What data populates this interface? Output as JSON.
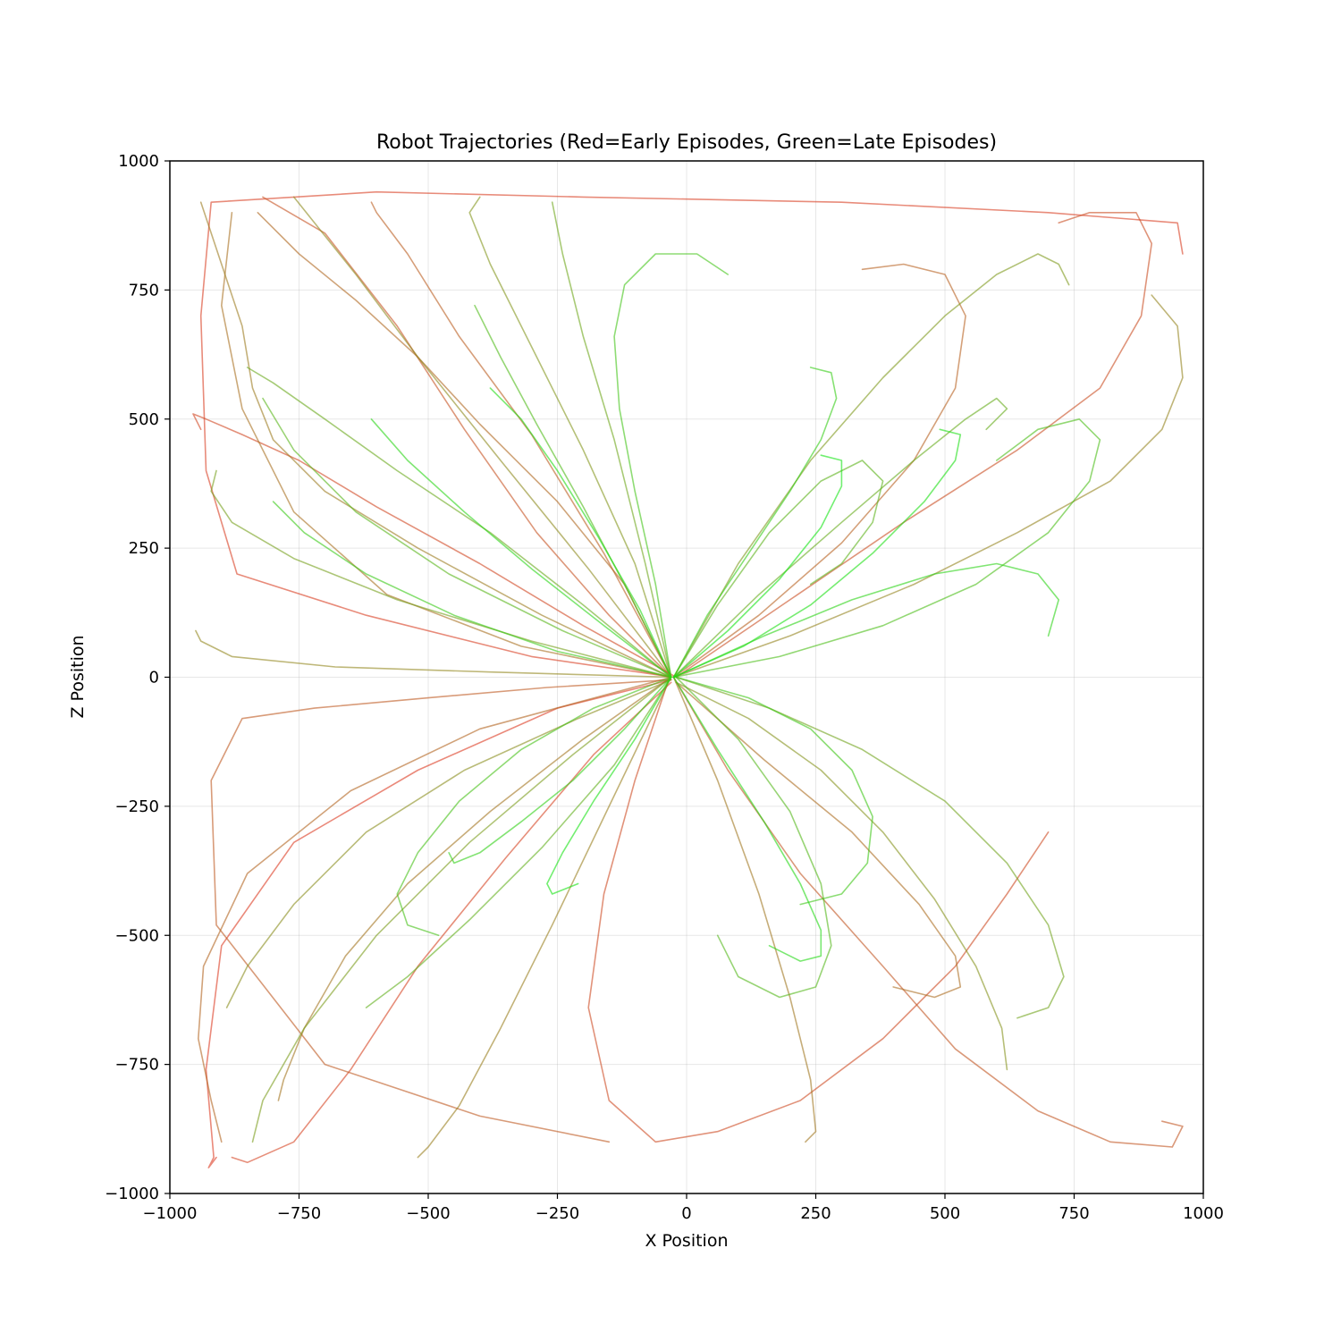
{
  "chart_data": {
    "type": "line",
    "title": "Robot Trajectories (Red=Early Episodes, Green=Late Episodes)",
    "xlabel": "X Position",
    "ylabel": "Z Position",
    "xlim": [
      -1000,
      1000
    ],
    "ylim": [
      -1000,
      1000
    ],
    "xticks": [
      -1000,
      -750,
      -500,
      -250,
      0,
      250,
      500,
      750,
      1000
    ],
    "yticks": [
      -1000,
      -750,
      -500,
      -250,
      0,
      250,
      500,
      750,
      1000
    ],
    "xtick_labels": [
      "−1000",
      "−750",
      "−500",
      "−250",
      "0",
      "250",
      "500",
      "750",
      "1000"
    ],
    "ytick_labels": [
      "−1000",
      "−750",
      "−500",
      "−250",
      "0",
      "250",
      "500",
      "750",
      "1000"
    ],
    "grid": true,
    "line_alpha": 0.6,
    "color_early": "#dc3a22",
    "color_mid": "#7f9a1d",
    "color_late": "#12e512",
    "series": [
      {
        "episode_fraction": 0.0,
        "x": [
          -30,
          -250,
          -520,
          -760,
          -900,
          -930,
          -915,
          -925,
          -910
        ],
        "y": [
          -5,
          -60,
          -180,
          -320,
          -520,
          -760,
          -930,
          -950,
          -930
        ]
      },
      {
        "episode_fraction": 0.02,
        "x": [
          -25,
          -300,
          -620,
          -870,
          -930,
          -940,
          -920,
          -600,
          -200,
          300,
          700,
          950,
          960
        ],
        "y": [
          0,
          40,
          120,
          200,
          400,
          700,
          920,
          940,
          930,
          920,
          900,
          880,
          820
        ]
      },
      {
        "episode_fraction": 0.04,
        "x": [
          -30,
          -180,
          -350,
          -520,
          -650,
          -760,
          -850,
          -880
        ],
        "y": [
          -10,
          -150,
          -350,
          -560,
          -760,
          -900,
          -940,
          -930
        ]
      },
      {
        "episode_fraction": 0.06,
        "x": [
          -20,
          -200,
          -400,
          -600,
          -750,
          -860,
          -930,
          -955,
          -940
        ],
        "y": [
          0,
          100,
          220,
          330,
          420,
          470,
          500,
          510,
          480
        ]
      },
      {
        "episode_fraction": 0.08,
        "x": [
          -35,
          -100,
          -160,
          -190,
          -150,
          -60,
          60,
          220,
          380,
          520,
          620,
          700
        ],
        "y": [
          -5,
          -200,
          -420,
          -640,
          -820,
          -900,
          -880,
          -820,
          -700,
          -560,
          -420,
          -300
        ]
      },
      {
        "episode_fraction": 0.1,
        "x": [
          -20,
          200,
          420,
          640,
          800,
          880,
          900,
          870,
          780,
          720
        ],
        "y": [
          0,
          150,
          300,
          440,
          560,
          700,
          840,
          900,
          900,
          880
        ]
      },
      {
        "episode_fraction": 0.12,
        "x": [
          -30,
          -150,
          -290,
          -430,
          -560,
          -700,
          -820
        ],
        "y": [
          0,
          120,
          280,
          480,
          680,
          860,
          930
        ]
      },
      {
        "episode_fraction": 0.14,
        "x": [
          -25,
          80,
          220,
          380,
          520,
          680,
          820,
          940,
          960,
          920
        ],
        "y": [
          0,
          -180,
          -380,
          -560,
          -720,
          -840,
          -900,
          -910,
          -870,
          -860
        ]
      },
      {
        "episode_fraction": 0.16,
        "x": [
          -30,
          -270,
          -500,
          -720,
          -860,
          -920,
          -910,
          -700,
          -400,
          -150
        ],
        "y": [
          -5,
          -20,
          -40,
          -60,
          -80,
          -200,
          -480,
          -750,
          -850,
          -900
        ]
      },
      {
        "episode_fraction": 0.18,
        "x": [
          -30,
          -160,
          -300,
          -440,
          -540,
          -600,
          -610
        ],
        "y": [
          0,
          240,
          470,
          660,
          820,
          900,
          920
        ]
      },
      {
        "episode_fraction": 0.2,
        "x": [
          -25,
          140,
          300,
          440,
          520,
          540,
          500,
          420,
          340
        ],
        "y": [
          0,
          120,
          260,
          420,
          560,
          700,
          780,
          800,
          790
        ]
      },
      {
        "episode_fraction": 0.22,
        "x": [
          -30,
          -400,
          -650,
          -850,
          -935,
          -945,
          -920,
          -900
        ],
        "y": [
          0,
          -100,
          -220,
          -380,
          -560,
          -700,
          -820,
          -900
        ]
      },
      {
        "episode_fraction": 0.24,
        "x": [
          -30,
          -120,
          -250,
          -400,
          -520,
          -640,
          -750,
          -830
        ],
        "y": [
          0,
          180,
          340,
          490,
          620,
          730,
          820,
          900
        ]
      },
      {
        "episode_fraction": 0.26,
        "x": [
          -20,
          150,
          320,
          450,
          520,
          530,
          480,
          400
        ],
        "y": [
          -10,
          -160,
          -300,
          -440,
          -540,
          -600,
          -620,
          -600
        ]
      },
      {
        "episode_fraction": 0.28,
        "x": [
          -30,
          -320,
          -580,
          -760,
          -860,
          -900,
          -880
        ],
        "y": [
          0,
          60,
          160,
          320,
          520,
          720,
          900
        ]
      },
      {
        "episode_fraction": 0.3,
        "x": [
          -30,
          -200,
          -380,
          -540,
          -660,
          -740,
          -780,
          -790
        ],
        "y": [
          0,
          -120,
          -260,
          -400,
          -540,
          -680,
          -780,
          -820
        ]
      },
      {
        "episode_fraction": 0.32,
        "x": [
          -25,
          60,
          140,
          200,
          240,
          250,
          230
        ],
        "y": [
          0,
          -200,
          -420,
          -620,
          -780,
          -880,
          -900
        ]
      },
      {
        "episode_fraction": 0.34,
        "x": [
          -30,
          -280,
          -520,
          -700,
          -800,
          -840,
          -860,
          -900,
          -940
        ],
        "y": [
          0,
          120,
          250,
          360,
          460,
          560,
          680,
          800,
          920
        ]
      },
      {
        "episode_fraction": 0.36,
        "x": [
          -30,
          -150,
          -260,
          -360,
          -440,
          -500,
          -520
        ],
        "y": [
          0,
          -250,
          -480,
          -680,
          -830,
          -910,
          -930
        ]
      },
      {
        "episode_fraction": 0.38,
        "x": [
          -25,
          200,
          440,
          640,
          820,
          920,
          960,
          950,
          900
        ],
        "y": [
          0,
          80,
          180,
          280,
          380,
          480,
          580,
          680,
          740
        ]
      },
      {
        "episode_fraction": 0.4,
        "x": [
          -30,
          -380,
          -680,
          -880,
          -940,
          -950
        ],
        "y": [
          0,
          10,
          20,
          40,
          70,
          90
        ]
      },
      {
        "episode_fraction": 0.42,
        "x": [
          -30,
          -190,
          -360,
          -520,
          -640,
          -720,
          -760
        ],
        "y": [
          0,
          210,
          420,
          620,
          780,
          880,
          930
        ]
      },
      {
        "episode_fraction": 0.44,
        "x": [
          -30,
          -210,
          -430,
          -620,
          -760,
          -850,
          -890
        ],
        "y": [
          -5,
          -80,
          -180,
          -300,
          -440,
          -560,
          -640
        ]
      },
      {
        "episode_fraction": 0.46,
        "x": [
          -20,
          120,
          260,
          380,
          480,
          560,
          610,
          620
        ],
        "y": [
          -10,
          -80,
          -180,
          -300,
          -430,
          -560,
          -680,
          -760
        ]
      },
      {
        "episode_fraction": 0.48,
        "x": [
          -30,
          -100,
          -200,
          -300,
          -380,
          -420,
          -400
        ],
        "y": [
          0,
          220,
          440,
          640,
          800,
          900,
          930
        ]
      },
      {
        "episode_fraction": 0.5,
        "x": [
          -25,
          100,
          240,
          380,
          500,
          600,
          680,
          720,
          740
        ],
        "y": [
          0,
          220,
          420,
          580,
          700,
          780,
          820,
          800,
          760
        ]
      },
      {
        "episode_fraction": 0.52,
        "x": [
          -30,
          -220,
          -420,
          -600,
          -740,
          -820,
          -840
        ],
        "y": [
          0,
          -150,
          -320,
          -500,
          -680,
          -820,
          -900
        ]
      },
      {
        "episode_fraction": 0.54,
        "x": [
          -30,
          -300,
          -560,
          -760,
          -880,
          -920,
          -910
        ],
        "y": [
          0,
          70,
          150,
          230,
          300,
          360,
          400
        ]
      },
      {
        "episode_fraction": 0.56,
        "x": [
          -20,
          160,
          340,
          500,
          620,
          700,
          730,
          700,
          640
        ],
        "y": [
          0,
          -60,
          -140,
          -240,
          -360,
          -480,
          -580,
          -640,
          -660
        ]
      },
      {
        "episode_fraction": 0.58,
        "x": [
          -30,
          -80,
          -140,
          -200,
          -240,
          -260
        ],
        "y": [
          0,
          220,
          460,
          660,
          820,
          920
        ]
      },
      {
        "episode_fraction": 0.6,
        "x": [
          -30,
          -200,
          -380,
          -560,
          -700,
          -800,
          -850
        ],
        "y": [
          0,
          140,
          280,
          400,
          500,
          570,
          600
        ]
      },
      {
        "episode_fraction": 0.62,
        "x": [
          -25,
          140,
          300,
          440,
          540,
          600,
          620,
          580
        ],
        "y": [
          0,
          160,
          300,
          420,
          500,
          540,
          520,
          480
        ]
      },
      {
        "episode_fraction": 0.64,
        "x": [
          -30,
          -140,
          -280,
          -420,
          -540,
          -620
        ],
        "y": [
          0,
          -170,
          -330,
          -470,
          -580,
          -640
        ]
      },
      {
        "episode_fraction": 0.66,
        "x": [
          -25,
          60,
          160,
          260,
          340,
          380,
          360,
          300,
          240
        ],
        "y": [
          0,
          140,
          280,
          380,
          420,
          380,
          300,
          220,
          180
        ]
      },
      {
        "episode_fraction": 0.68,
        "x": [
          -30,
          -240,
          -460,
          -640,
          -760,
          -820
        ],
        "y": [
          0,
          90,
          200,
          320,
          440,
          540
        ]
      },
      {
        "episode_fraction": 0.7,
        "x": [
          -20,
          100,
          200,
          260,
          280,
          250,
          180,
          100,
          60
        ],
        "y": [
          0,
          -120,
          -260,
          -400,
          -520,
          -600,
          -620,
          -580,
          -500
        ]
      },
      {
        "episode_fraction": 0.72,
        "x": [
          -30,
          -110,
          -200,
          -290,
          -360,
          -410
        ],
        "y": [
          0,
          160,
          330,
          490,
          620,
          720
        ]
      },
      {
        "episode_fraction": 0.74,
        "x": [
          -25,
          180,
          380,
          560,
          700,
          780,
          800,
          760,
          680,
          600
        ],
        "y": [
          0,
          40,
          100,
          180,
          280,
          380,
          460,
          500,
          480,
          420
        ]
      },
      {
        "episode_fraction": 0.76,
        "x": [
          -30,
          -180,
          -320,
          -440,
          -520,
          -560,
          -540,
          -480
        ],
        "y": [
          0,
          -60,
          -140,
          -240,
          -340,
          -420,
          -480,
          -500
        ]
      },
      {
        "episode_fraction": 0.78,
        "x": [
          -30,
          -60,
          -100,
          -130,
          -140,
          -120,
          -60,
          20,
          80
        ],
        "y": [
          0,
          180,
          360,
          520,
          660,
          760,
          820,
          820,
          780
        ]
      },
      {
        "episode_fraction": 0.8,
        "x": [
          -20,
          120,
          240,
          320,
          360,
          350,
          300,
          220
        ],
        "y": [
          0,
          -40,
          -100,
          -180,
          -270,
          -360,
          -420,
          -440
        ]
      },
      {
        "episode_fraction": 0.82,
        "x": [
          -30,
          -250,
          -450,
          -620,
          -740,
          -800
        ],
        "y": [
          0,
          50,
          120,
          200,
          280,
          340
        ]
      },
      {
        "episode_fraction": 0.84,
        "x": [
          -25,
          40,
          120,
          200,
          260,
          290,
          280,
          240
        ],
        "y": [
          0,
          120,
          240,
          360,
          460,
          540,
          590,
          600
        ]
      },
      {
        "episode_fraction": 0.86,
        "x": [
          -30,
          -120,
          -220,
          -320,
          -400,
          -450,
          -460
        ],
        "y": [
          0,
          -100,
          -200,
          -280,
          -340,
          -360,
          -340
        ]
      },
      {
        "episode_fraction": 0.88,
        "x": [
          -25,
          150,
          320,
          480,
          600,
          680,
          720,
          700
        ],
        "y": [
          0,
          80,
          150,
          200,
          220,
          200,
          150,
          80
        ]
      },
      {
        "episode_fraction": 0.9,
        "x": [
          -30,
          -160,
          -300,
          -430,
          -540,
          -610
        ],
        "y": [
          0,
          100,
          210,
          320,
          420,
          500
        ]
      },
      {
        "episode_fraction": 0.92,
        "x": [
          -25,
          60,
          150,
          220,
          260,
          260,
          220,
          160
        ],
        "y": [
          0,
          -140,
          -280,
          -400,
          -490,
          -540,
          -550,
          -520
        ]
      },
      {
        "episode_fraction": 0.94,
        "x": [
          -30,
          -90,
          -170,
          -250,
          -320,
          -380
        ],
        "y": [
          0,
          130,
          270,
          400,
          500,
          560
        ]
      },
      {
        "episode_fraction": 0.96,
        "x": [
          -25,
          110,
          240,
          360,
          460,
          520,
          530,
          490
        ],
        "y": [
          0,
          60,
          140,
          240,
          340,
          420,
          470,
          480
        ]
      },
      {
        "episode_fraction": 0.98,
        "x": [
          -30,
          -100,
          -180,
          -240,
          -270,
          -260,
          -210
        ],
        "y": [
          0,
          -120,
          -240,
          -340,
          -400,
          -420,
          -400
        ]
      },
      {
        "episode_fraction": 1.0,
        "x": [
          -25,
          80,
          180,
          260,
          300,
          300,
          260
        ],
        "y": [
          0,
          90,
          190,
          290,
          370,
          420,
          430
        ]
      }
    ]
  }
}
